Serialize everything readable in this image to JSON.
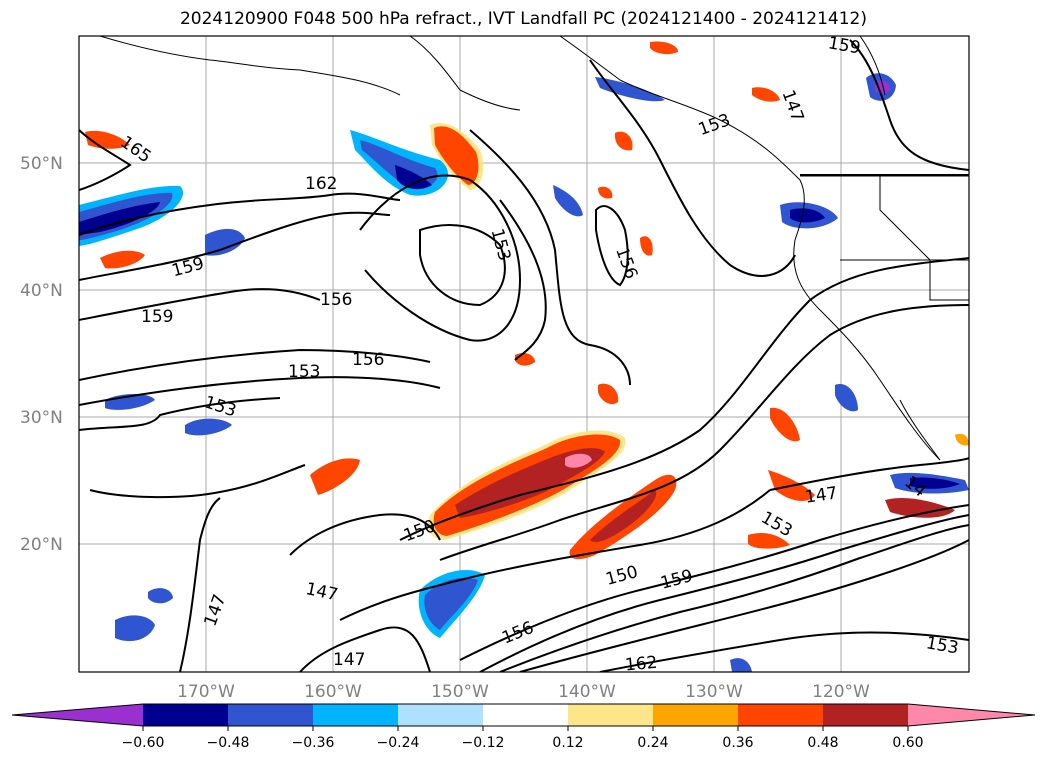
{
  "title": "2024120900 F048 500 hPa refract., IVT Landfall PC (2024121400 - 2024121412)",
  "map": {
    "lat_labels": [
      "50°N",
      "40°N",
      "30°N",
      "20°N"
    ],
    "lon_labels": [
      "170°W",
      "160°W",
      "150°W",
      "140°W",
      "130°W",
      "120°W"
    ],
    "contour_labels": [
      "165",
      "162",
      "159",
      "159",
      "156",
      "156",
      "153",
      "153",
      "153",
      "156",
      "150",
      "150",
      "147",
      "147",
      "147",
      "147",
      "153",
      "159",
      "156",
      "162",
      "153",
      "159",
      "153",
      "147",
      "14"
    ]
  },
  "colorbar": {
    "ticks": [
      "−0.60",
      "−0.48",
      "−0.36",
      "−0.24",
      "−0.12",
      "0.12",
      "0.24",
      "0.36",
      "0.48",
      "0.60"
    ],
    "colors": [
      "#9b30d0",
      "#000090",
      "#3055d0",
      "#00b4ff",
      "#b0e0ff",
      "#ffffff",
      "#fde68a",
      "#ffa500",
      "#ff4500",
      "#b22222",
      "#ff88aa"
    ]
  }
}
